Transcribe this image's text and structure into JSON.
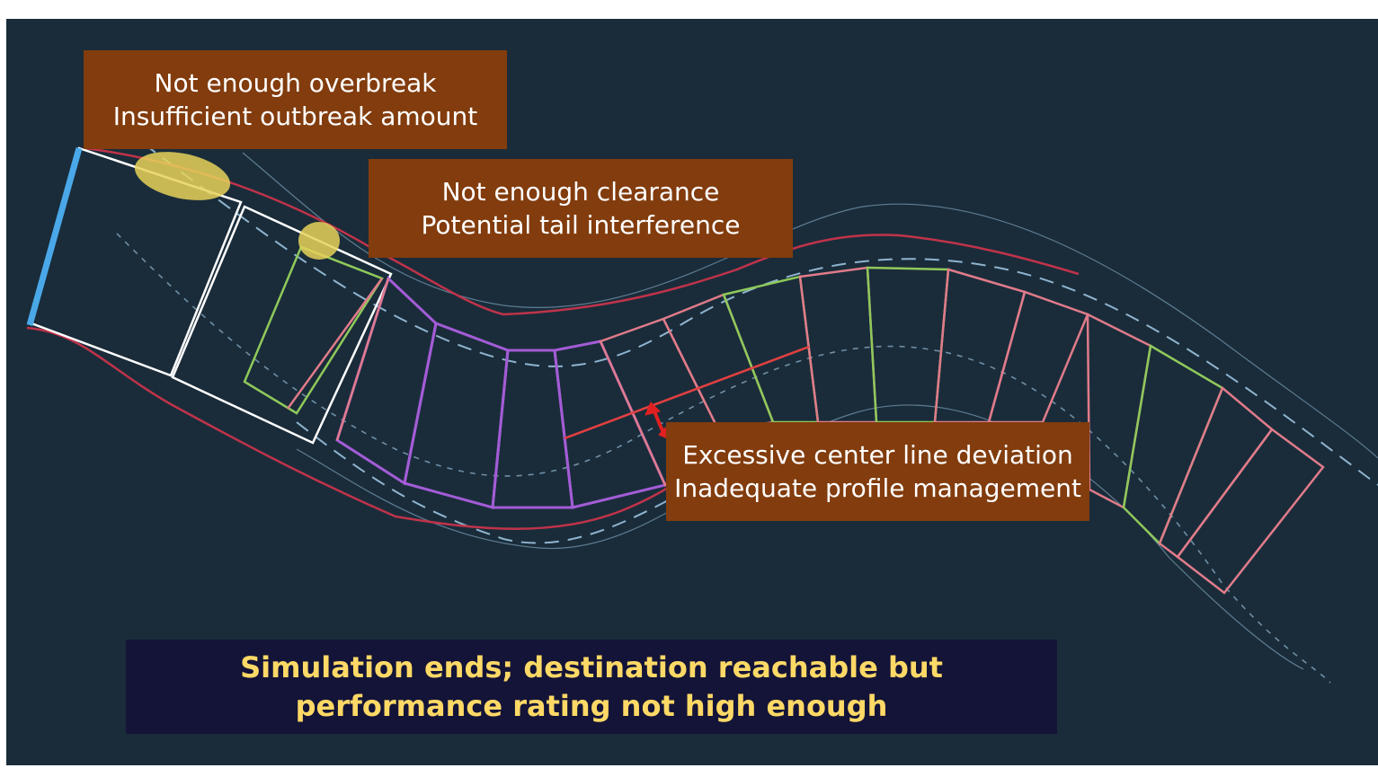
{
  "callouts": {
    "overbreak": {
      "line1": "Not enough overbreak",
      "line2": "Insufficient outbreak amount"
    },
    "clearance": {
      "line1": "Not enough clearance",
      "line2": "Potential tail interference"
    },
    "deviation": {
      "line1": "Excessive center line deviation",
      "line2": "Inadequate profile management"
    }
  },
  "status": {
    "line1": "Simulation ends; destination reachable but",
    "line2": "performance rating not high enough"
  },
  "colors": {
    "background": "#1a2c3a",
    "callout": "#823c0d",
    "status_box": "#141438",
    "status_text": "#ffd966",
    "tunnel_wall": "#c0334a",
    "segment_green": "#8fc95a",
    "segment_pink": "#e07b8a",
    "segment_purple": "#a35cd6",
    "machine_outline": "#ffffff",
    "cutter_face": "#4aa8e8",
    "highlight": "#e8d25a",
    "deviation_arrow": "#e02020",
    "centerline": "#8fb4cf"
  }
}
